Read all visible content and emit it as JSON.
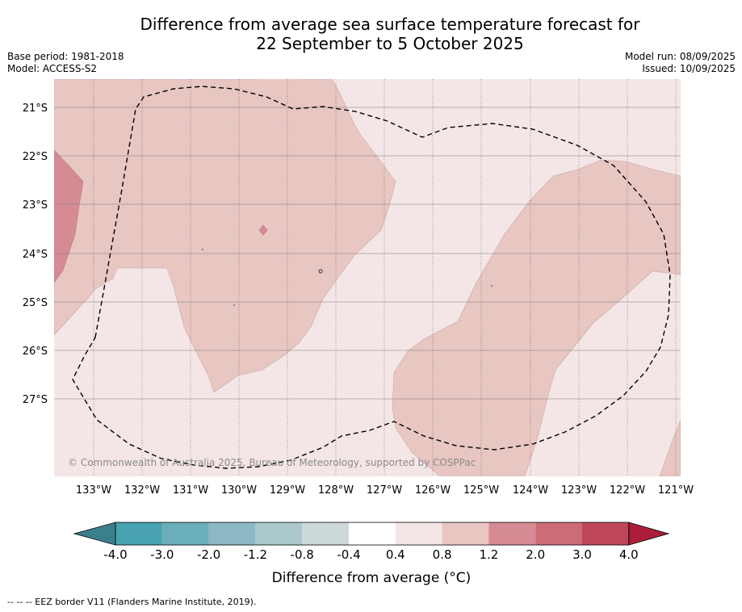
{
  "title": {
    "line1": "Difference from average sea surface temperature forecast for",
    "line2": "22 September to 5 October 2025"
  },
  "meta_left": {
    "base_period": "Base period: 1981-2018",
    "model": "Model: ACCESS-S2"
  },
  "meta_right": {
    "model_run": "Model run: 08/09/2025",
    "issued": "Issued: 10/09/2025"
  },
  "map": {
    "lat_labels": [
      "21°S",
      "22°S",
      "23°S",
      "24°S",
      "25°S",
      "26°S",
      "27°S"
    ],
    "lon_labels": [
      "133°W",
      "132°W",
      "131°W",
      "130°W",
      "129°W",
      "128°W",
      "127°W",
      "126°W",
      "125°W",
      "124°W",
      "123°W",
      "122°W",
      "121°W"
    ],
    "copyright": "© Commonwealth of Australia 2025, Bureau of Meteorology, supported by COSPPac",
    "colors": {
      "background_anomaly": "#f4e6e6",
      "warm_anomaly": "#e8c6c2",
      "strong_warm_anomaly": "#d68b94",
      "eez_border": "#000000"
    }
  },
  "legend": {
    "ticks": [
      "-4.0",
      "-3.0",
      "-2.0",
      "-1.2",
      "-0.8",
      "-0.4",
      "0.4",
      "0.8",
      "1.2",
      "2.0",
      "3.0",
      "4.0"
    ],
    "colors": [
      "#3c7f8c",
      "#47a1b1",
      "#6aaebb",
      "#8cb8c3",
      "#abc9cd",
      "#cdd8db",
      "#ffffff",
      "#f4e6e6",
      "#e8c6c2",
      "#d68b94",
      "#cb6c77",
      "#bf4658",
      "#ac1d3b"
    ],
    "label": "Difference from average (°C)"
  },
  "footer": "-- -- -- EEZ border V11 (Flanders Marine Institute, 2019)."
}
